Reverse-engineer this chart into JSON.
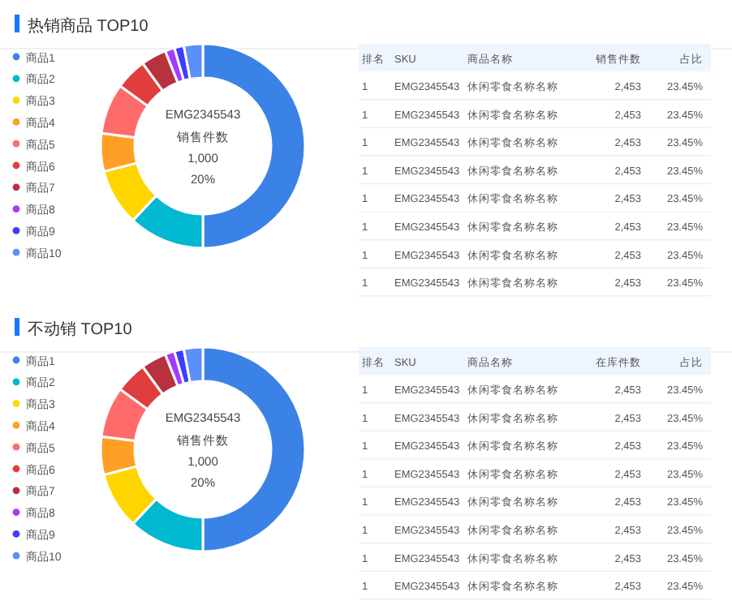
{
  "chart_data": [
    {
      "type": "donut",
      "title": "热销商品 TOP10",
      "categories": [
        "商品1",
        "商品2",
        "商品3",
        "商品4",
        "商品5",
        "商品6",
        "商品7",
        "商品8",
        "商品9",
        "商品10"
      ],
      "values": [
        50,
        12,
        9,
        6,
        8,
        5,
        4,
        1.5,
        1.5,
        3
      ],
      "colors": [
        "#3b82e6",
        "#00b8d0",
        "#ffd500",
        "#ff9f26",
        "#ff6b6b",
        "#e03e3e",
        "#b8313f",
        "#a23cff",
        "#3d3dff",
        "#5b8ff9"
      ],
      "legend": "left",
      "annotations": [
        "EMG2345543",
        "销售件数",
        "1,000",
        "20%"
      ]
    },
    {
      "type": "other",
      "categories": [
        "排名",
        "SKU",
        "商品名称",
        "销售件数",
        "占比"
      ],
      "cell_labels": [
        [
          "1",
          "EMG2345543",
          "休闲零食名称名称",
          "2,453",
          "23.45%"
        ],
        [
          "1",
          "EMG2345543",
          "休闲零食名称名称",
          "2,453",
          "23.45%"
        ],
        [
          "1",
          "EMG2345543",
          "休闲零食名称名称",
          "2,453",
          "23.45%"
        ],
        [
          "1",
          "EMG2345543",
          "休闲零食名称名称",
          "2,453",
          "23.45%"
        ],
        [
          "1",
          "EMG2345543",
          "休闲零食名称名称",
          "2,453",
          "23.45%"
        ],
        [
          "1",
          "EMG2345543",
          "休闲零食名称名称",
          "2,453",
          "23.45%"
        ],
        [
          "1",
          "EMG2345543",
          "休闲零食名称名称",
          "2,453",
          "23.45%"
        ],
        [
          "1",
          "EMG2345543",
          "休闲零食名称名称",
          "2,453",
          "23.45%"
        ]
      ]
    },
    {
      "type": "donut",
      "title": "不动销 TOP10",
      "categories": [
        "商品1",
        "商品2",
        "商品3",
        "商品4",
        "商品5",
        "商品6",
        "商品7",
        "商品8",
        "商品9",
        "商品10"
      ],
      "values": [
        50,
        12,
        9,
        6,
        8,
        5,
        4,
        1.5,
        1.5,
        3
      ],
      "colors": [
        "#3b82e6",
        "#00b8d0",
        "#ffd500",
        "#ff9f26",
        "#ff6b6b",
        "#e03e3e",
        "#b8313f",
        "#a23cff",
        "#3d3dff",
        "#5b8ff9"
      ],
      "legend": "left",
      "annotations": [
        "EMG2345543",
        "销售件数",
        "1,000",
        "20%"
      ]
    },
    {
      "type": "other",
      "categories": [
        "排名",
        "SKU",
        "商品名称",
        "在库件数",
        "占比"
      ],
      "cell_labels": [
        [
          "1",
          "EMG2345543",
          "休闲零食名称名称",
          "2,453",
          "23.45%"
        ],
        [
          "1",
          "EMG2345543",
          "休闲零食名称名称",
          "2,453",
          "23.45%"
        ],
        [
          "1",
          "EMG2345543",
          "休闲零食名称名称",
          "2,453",
          "23.45%"
        ],
        [
          "1",
          "EMG2345543",
          "休闲零食名称名称",
          "2,453",
          "23.45%"
        ],
        [
          "1",
          "EMG2345543",
          "休闲零食名称名称",
          "2,453",
          "23.45%"
        ],
        [
          "1",
          "EMG2345543",
          "休闲零食名称名称",
          "2,453",
          "23.45%"
        ],
        [
          "1",
          "EMG2345543",
          "休闲零食名称名称",
          "2,453",
          "23.45%"
        ],
        [
          "1",
          "EMG2345543",
          "休闲零食名称名称",
          "2,453",
          "23.45%"
        ]
      ]
    }
  ]
}
